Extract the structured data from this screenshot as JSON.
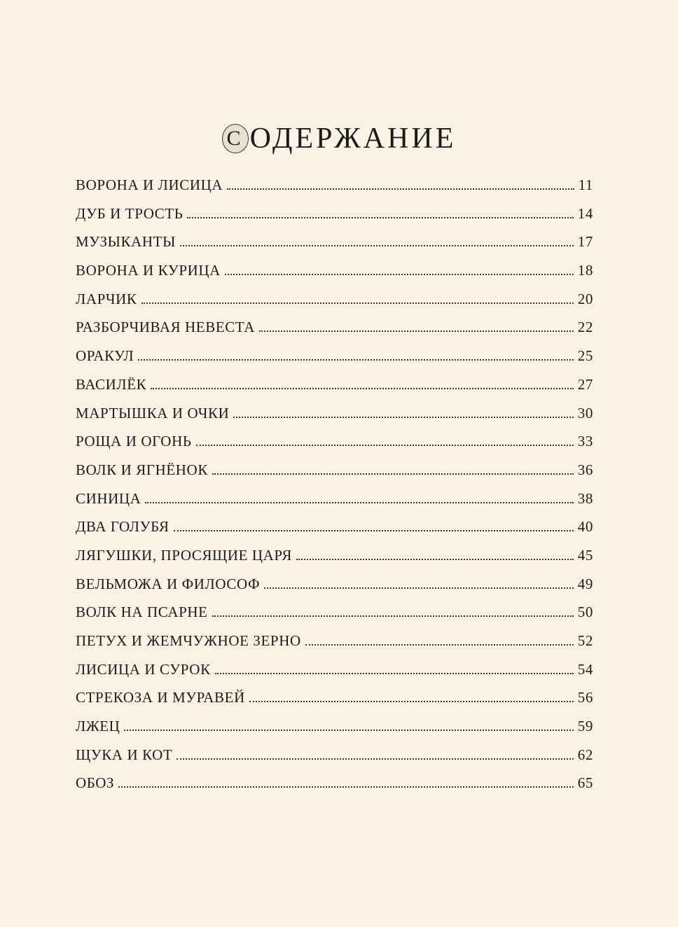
{
  "title": {
    "initial": "С",
    "rest": "ОДЕРЖАНИЕ"
  },
  "entries": [
    {
      "label": "ВОРОНА И ЛИСИЦА",
      "page": "11"
    },
    {
      "label": "ДУБ И ТРОСТЬ",
      "page": "14"
    },
    {
      "label": "МУЗЫКАНТЫ",
      "page": "17"
    },
    {
      "label": "ВОРОНА И КУРИЦА",
      "page": "18"
    },
    {
      "label": "ЛАРЧИК",
      "page": "20"
    },
    {
      "label": "РАЗБОРЧИВАЯ НЕВЕСТА",
      "page": "22"
    },
    {
      "label": "ОРАКУЛ",
      "page": "25"
    },
    {
      "label": "ВАСИЛЁК",
      "page": "27"
    },
    {
      "label": "МАРТЫШКА И ОЧКИ",
      "page": "30"
    },
    {
      "label": "РОЩА И ОГОНЬ",
      "page": "33"
    },
    {
      "label": "ВОЛК И ЯГНЁНОК",
      "page": "36"
    },
    {
      "label": "СИНИЦА",
      "page": "38"
    },
    {
      "label": "ДВА ГОЛУБЯ",
      "page": "40"
    },
    {
      "label": "ЛЯГУШКИ, ПРОСЯЩИЕ ЦАРЯ",
      "page": "45"
    },
    {
      "label": "ВЕЛЬМОЖА И ФИЛОСОФ",
      "page": "49"
    },
    {
      "label": "ВОЛК НА ПСАРНЕ",
      "page": "50"
    },
    {
      "label": "ПЕТУХ И ЖЕМЧУЖНОЕ ЗЕРНО",
      "page": "52"
    },
    {
      "label": "ЛИСИЦА И СУРОК",
      "page": "54"
    },
    {
      "label": "СТРЕКОЗА И МУРАВЕЙ",
      "page": "56"
    },
    {
      "label": "ЛЖЕЦ",
      "page": "59"
    },
    {
      "label": "ЩУКА И КОТ",
      "page": "62"
    },
    {
      "label": "ОБОЗ",
      "page": "65"
    }
  ]
}
